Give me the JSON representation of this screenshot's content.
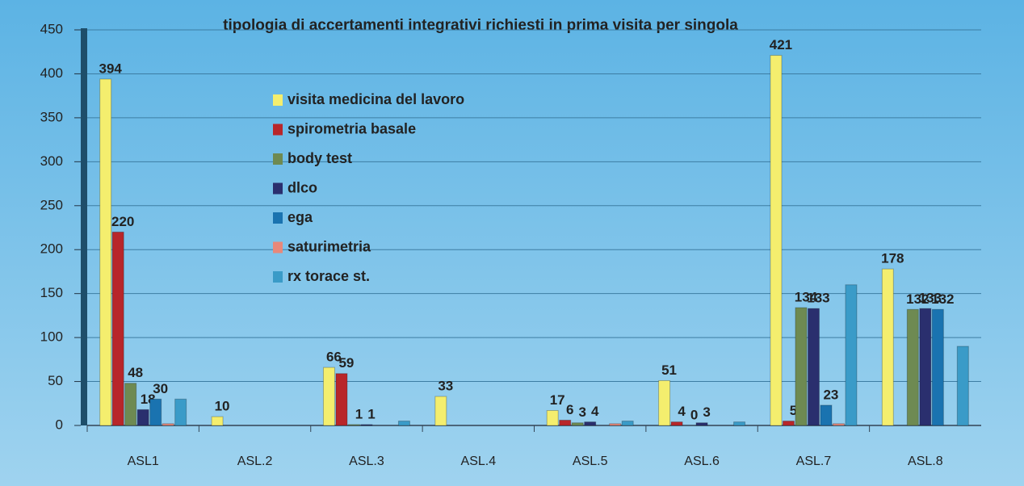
{
  "chart_data": {
    "type": "bar",
    "title": "tipologia di accertamenti integrativi richiesti  in prima visita per singola",
    "categories": [
      "ASL1",
      "ASL.2",
      "ASL.3",
      "ASL.4",
      "ASL.5",
      "ASL.6",
      "ASL.7",
      "ASL.8"
    ],
    "series": [
      {
        "name": "visita medicina del lavoro",
        "color": "#f4ee6e",
        "values": [
          394,
          10,
          66,
          33,
          17,
          51,
          421,
          178
        ]
      },
      {
        "name": "spirometria basale",
        "color": "#b8262a",
        "values": [
          220,
          null,
          59,
          null,
          6,
          4,
          5,
          null
        ],
        "value_labels": [
          "220",
          null,
          "59",
          null,
          "6",
          "4",
          "5",
          null
        ]
      },
      {
        "name": "body test",
        "color": "#6e8a52",
        "values": [
          48,
          null,
          1,
          null,
          3,
          0,
          134,
          132
        ],
        "value_labels": [
          "48",
          null,
          "1",
          null,
          "3",
          "0",
          "134",
          "132"
        ]
      },
      {
        "name": "dlco",
        "color": "#2a2f6e",
        "values": [
          18,
          null,
          1,
          null,
          4,
          3,
          133,
          133
        ],
        "value_labels": [
          "18",
          null,
          "1",
          null,
          "4",
          "3",
          "133",
          "133"
        ]
      },
      {
        "name": "ega",
        "color": "#1a73b0",
        "values": [
          30,
          null,
          null,
          null,
          null,
          null,
          23,
          132
        ],
        "value_labels": [
          "30",
          null,
          null,
          null,
          null,
          null,
          "23",
          "132"
        ]
      },
      {
        "name": "saturimetria",
        "color": "#e8887a",
        "values": [
          2,
          null,
          null,
          null,
          2,
          null,
          2,
          null
        ]
      },
      {
        "name": "rx torace st.",
        "color": "#3a9bc8",
        "values": [
          30,
          null,
          5,
          null,
          5,
          4,
          160,
          90
        ]
      }
    ],
    "ylim": [
      0,
      450
    ],
    "yticks": [
      0,
      50,
      100,
      150,
      200,
      250,
      300,
      350,
      400,
      450
    ],
    "grid": true
  }
}
